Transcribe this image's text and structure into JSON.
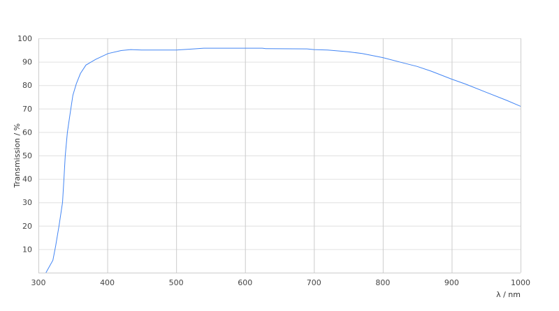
{
  "chart_data": {
    "type": "line",
    "title": "",
    "xlabel": "λ / nm",
    "ylabel": "Transmission / %",
    "xlim": [
      300,
      1000
    ],
    "ylim": [
      0,
      100
    ],
    "xticks": [
      300,
      400,
      500,
      600,
      700,
      800,
      900,
      1000
    ],
    "yticks": [
      10,
      20,
      30,
      40,
      50,
      60,
      70,
      80,
      90,
      100
    ],
    "grid": true,
    "line_color": "#4285f4",
    "series": [
      {
        "x": [
          311,
          321,
          325,
          330,
          335,
          337,
          339,
          342,
          346,
          350,
          355,
          361,
          369,
          383,
          401,
          420,
          434,
          450,
          500,
          520,
          540,
          600,
          625,
          630,
          690,
          700,
          720,
          750,
          770,
          800,
          830,
          850,
          870,
          900,
          920,
          950,
          980,
          1000
        ],
        "y": [
          0,
          5.3,
          11.3,
          20.2,
          30,
          40,
          50,
          59.8,
          67.8,
          75.7,
          80.6,
          85,
          88.6,
          91,
          93.5,
          94.8,
          95.2,
          95.0,
          95.0,
          95.4,
          95.8,
          95.8,
          95.8,
          95.6,
          95.5,
          95.2,
          95.0,
          94.3,
          93.5,
          91.8,
          89.5,
          88,
          86,
          82.6,
          80.5,
          77,
          73.5,
          71
        ]
      }
    ]
  }
}
